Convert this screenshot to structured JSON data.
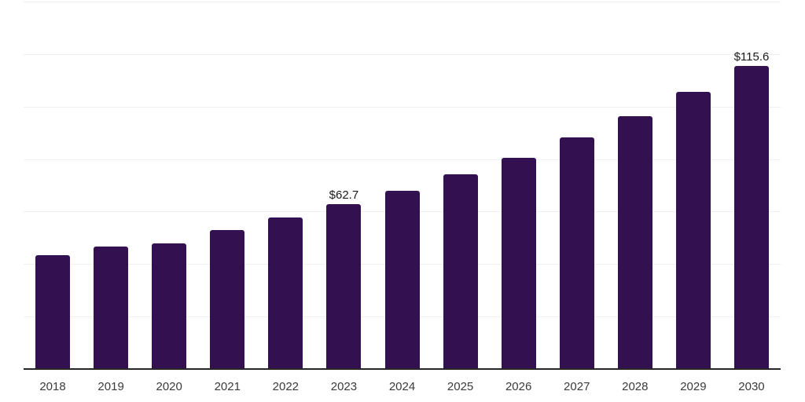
{
  "chart_data": {
    "type": "bar",
    "categories": [
      "2018",
      "2019",
      "2020",
      "2021",
      "2022",
      "2023",
      "2024",
      "2025",
      "2026",
      "2027",
      "2028",
      "2029",
      "2030"
    ],
    "values": [
      43.4,
      46.7,
      47.9,
      53.0,
      57.8,
      62.7,
      67.9,
      74.2,
      80.5,
      88.3,
      96.4,
      105.6,
      115.6
    ],
    "data_labels": {
      "2023": "$62.7",
      "2030": "$115.6"
    },
    "title": "",
    "xlabel": "",
    "ylabel": "",
    "ylim": [
      0,
      140
    ],
    "grid_step": 20,
    "grid": true,
    "legend": "none",
    "y_tick_labels_shown": false
  },
  "colors": {
    "bar": "#331150",
    "grid": "#f0f0f0",
    "axis": "#262626",
    "data_label": "#1a1a1a",
    "tick_label": "#3a3a3a",
    "background": "#ffffff"
  }
}
